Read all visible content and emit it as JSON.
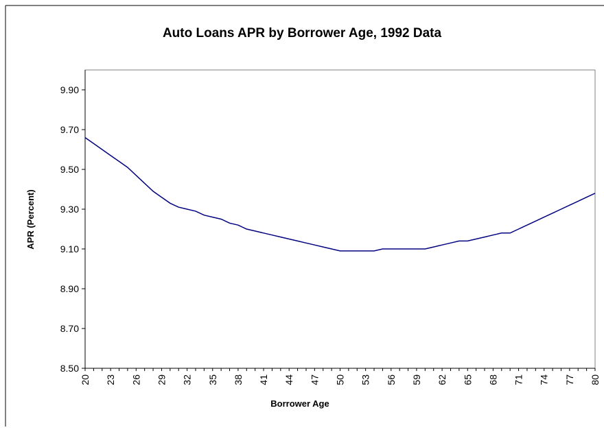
{
  "chart_data": {
    "type": "line",
    "title": "Auto Loans APR by Borrower Age, 1992 Data",
    "xlabel": "Borrower Age",
    "ylabel": "APR (Percent)",
    "xlim": [
      20,
      80
    ],
    "ylim": [
      8.5,
      9.9
    ],
    "x_tick_labels": [
      "20",
      "23",
      "26",
      "29",
      "32",
      "35",
      "38",
      "41",
      "44",
      "47",
      "50",
      "53",
      "56",
      "59",
      "62",
      "65",
      "68",
      "71",
      "74",
      "77",
      "80"
    ],
    "y_tick_labels": [
      "8.50",
      "8.70",
      "8.90",
      "9.10",
      "9.30",
      "9.50",
      "9.70",
      "9.90"
    ],
    "line_color": "#000080",
    "grid": false,
    "series": [
      {
        "x": [
          20,
          21,
          22,
          23,
          24,
          25,
          26,
          27,
          28,
          29,
          30,
          31,
          32,
          33,
          34,
          35,
          36,
          37,
          38,
          39,
          40,
          41,
          42,
          43,
          44,
          45,
          46,
          47,
          48,
          49,
          50,
          51,
          52,
          53,
          54,
          55,
          56,
          57,
          58,
          59,
          60,
          61,
          62,
          63,
          64,
          65,
          66,
          67,
          68,
          69,
          70,
          71,
          72,
          73,
          74,
          75,
          76,
          77,
          78,
          79,
          80
        ],
        "values": [
          9.66,
          9.63,
          9.6,
          9.57,
          9.54,
          9.51,
          9.47,
          9.43,
          9.39,
          9.36,
          9.33,
          9.31,
          9.3,
          9.29,
          9.27,
          9.26,
          9.25,
          9.23,
          9.22,
          9.2,
          9.19,
          9.18,
          9.17,
          9.16,
          9.15,
          9.14,
          9.13,
          9.12,
          9.11,
          9.1,
          9.09,
          9.09,
          9.09,
          9.09,
          9.09,
          9.1,
          9.1,
          9.1,
          9.1,
          9.1,
          9.1,
          9.11,
          9.12,
          9.13,
          9.14,
          9.14,
          9.15,
          9.16,
          9.17,
          9.18,
          9.18,
          9.2,
          9.22,
          9.24,
          9.26,
          9.28,
          9.3,
          9.32,
          9.34,
          9.36,
          9.38
        ]
      }
    ]
  }
}
